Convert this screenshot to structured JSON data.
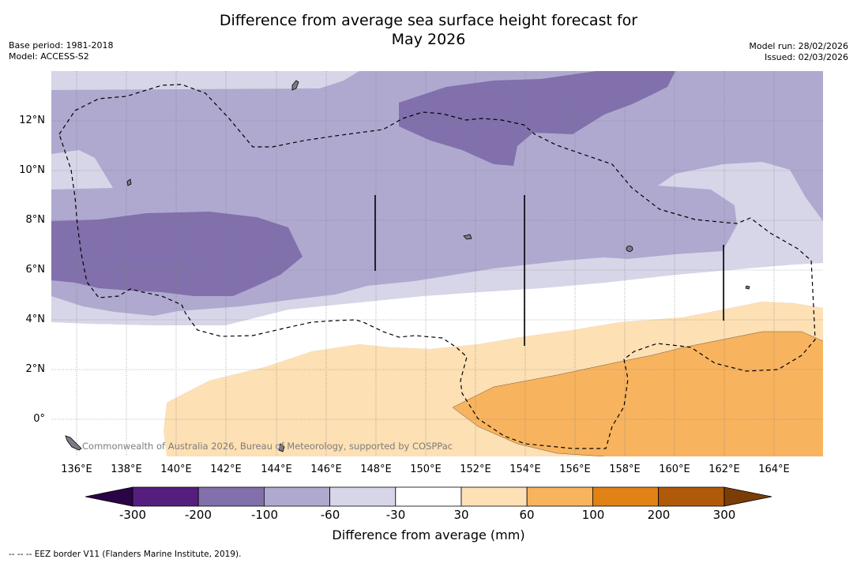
{
  "title_line1": "Difference from average sea surface height forecast for",
  "title_line2": "May 2026",
  "base_period": "Base period: 1981-2018",
  "model": "Model: ACCESS-S2",
  "model_run": "Model run: 28/02/2026",
  "issued": "Issued: 02/03/2026",
  "credit": "Commonwealth of Australia 2026, Bureau of Meteorology, supported by COSPPac",
  "lat_labels": [
    "12°N",
    "10°N",
    "8°N",
    "6°N",
    "4°N",
    "2°N",
    "0°"
  ],
  "lon_labels": [
    "136°E",
    "138°E",
    "140°E",
    "142°E",
    "144°E",
    "146°E",
    "148°E",
    "150°E",
    "152°E",
    "154°E",
    "156°E",
    "158°E",
    "160°E",
    "162°E",
    "164°E"
  ],
  "colorbar": {
    "label": "Difference from average (mm)",
    "ticks": [
      "-300",
      "-200",
      "-100",
      "-60",
      "-30",
      "30",
      "60",
      "100",
      "200",
      "300"
    ],
    "colors": [
      "#551e7e",
      "#8170ab",
      "#afa9d0",
      "#d6d6e8",
      "#ffffff",
      "#fde0b4",
      "#f8b35e",
      "#e08216",
      "#b05a09"
    ],
    "under_color": "#2a0446",
    "over_color": "#7a3d06"
  },
  "legend_note": "--  --  -- EEZ border V11 (Flanders Marine Institute, 2019)."
}
